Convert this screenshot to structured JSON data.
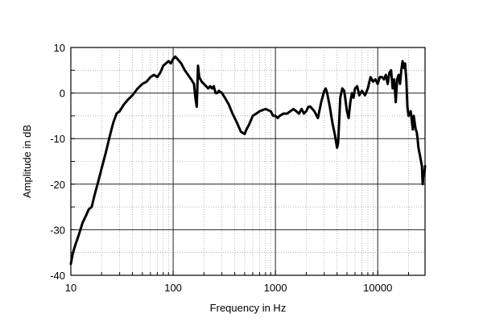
{
  "chart_data": {
    "type": "line",
    "title": "",
    "xlabel": "Frequency in Hz",
    "ylabel": "Amplitude in dB",
    "x_scale": "log",
    "xlim": [
      10,
      29000
    ],
    "ylim": [
      -40,
      10
    ],
    "x_ticks": [
      10,
      100,
      1000,
      10000
    ],
    "x_tick_labels": [
      "10",
      "100",
      "1000",
      "10000"
    ],
    "y_ticks": [
      10,
      0,
      -10,
      -20,
      -30,
      -40
    ],
    "y_tick_labels": [
      "10",
      "0",
      "-10",
      "-20",
      "-30",
      "-40"
    ],
    "grid": true,
    "colors": {
      "line": "#000000",
      "grid_major": "#222222",
      "grid_minor": "#888888"
    },
    "series": [
      {
        "x": [
          10,
          10.5,
          11,
          12,
          13,
          14,
          15,
          16,
          17,
          18,
          19,
          20,
          22,
          24,
          26,
          28,
          30,
          33,
          36,
          40,
          45,
          50,
          55,
          60,
          65,
          70,
          75,
          80,
          85,
          90,
          95,
          100,
          105,
          110,
          115,
          120,
          130,
          140,
          150,
          160,
          165,
          170,
          175,
          180,
          190,
          200,
          210,
          220,
          230,
          240,
          250,
          260,
          270,
          280,
          300,
          320,
          350,
          380,
          420,
          460,
          500,
          520,
          550,
          600,
          650,
          700,
          800,
          900,
          950,
          1000,
          1050,
          1100,
          1200,
          1300,
          1400,
          1500,
          1600,
          1700,
          1800,
          1900,
          2000,
          2100,
          2200,
          2400,
          2600,
          2800,
          3000,
          3100,
          3200,
          3400,
          3600,
          3800,
          4000,
          4100,
          4200,
          4300,
          4500,
          4700,
          5000,
          5200,
          5400,
          5600,
          5800,
          6000,
          6300,
          6600,
          7000,
          7500,
          8000,
          8500,
          9000,
          9500,
          10000,
          10500,
          11000,
          11500,
          12000,
          12500,
          13000,
          13500,
          14000,
          14500,
          15000,
          15500,
          16000,
          16500,
          17000,
          17500,
          18000,
          18500,
          19000,
          19500,
          20000,
          20500,
          21000,
          21500,
          22000,
          22500,
          23000,
          23500,
          24000,
          24500,
          25000,
          26000,
          27000,
          27500,
          28000,
          28500,
          29000
        ],
        "y": [
          -37.5,
          -35,
          -33.5,
          -31,
          -28.5,
          -27,
          -25.5,
          -25,
          -22.5,
          -20.5,
          -18.5,
          -16.5,
          -13,
          -9.5,
          -6.5,
          -4.5,
          -4,
          -2.5,
          -1.5,
          -0.5,
          1,
          2,
          2.5,
          3.5,
          4,
          3.5,
          4.5,
          6,
          6.5,
          7,
          6.5,
          7.5,
          8,
          7.5,
          7,
          6.5,
          5,
          4,
          3,
          2,
          -1,
          -3,
          6,
          3.5,
          2.5,
          2,
          1.5,
          1,
          1.5,
          1,
          1.5,
          0,
          0,
          0.5,
          0,
          -1,
          -2.5,
          -4.5,
          -6.5,
          -8.5,
          -9,
          -8,
          -7,
          -5,
          -4.5,
          -4,
          -3.5,
          -4,
          -5,
          -5,
          -5.5,
          -5,
          -4.5,
          -4.5,
          -4,
          -3.5,
          -4,
          -4.5,
          -3.5,
          -4.5,
          -4,
          -3,
          -3,
          -4,
          -5.5,
          -2,
          0.5,
          1,
          0,
          -3,
          -6.5,
          -9,
          -12,
          -11,
          -6,
          -1,
          1,
          0.5,
          -4,
          -5.5,
          -2,
          0,
          -1,
          1,
          1.5,
          -0.5,
          0.5,
          -0.5,
          1,
          3.5,
          2.5,
          3,
          2,
          3.5,
          3.5,
          3,
          4,
          2,
          4.5,
          5,
          1,
          3,
          -2,
          3,
          4,
          2,
          5,
          7,
          5.5,
          6.5,
          3,
          -3,
          -5,
          -4.5,
          -4,
          -6,
          -8,
          -5,
          -6.5,
          -8,
          -8.5,
          -10,
          -12,
          -14,
          -16,
          -20,
          -17.5,
          -18,
          -16
        ]
      }
    ]
  }
}
